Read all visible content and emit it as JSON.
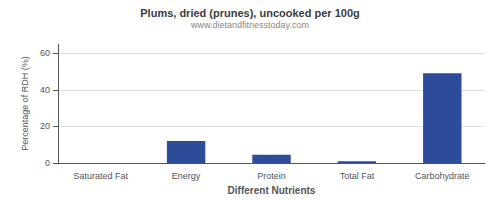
{
  "chart_data": {
    "type": "bar",
    "title": "Plums, dried (prunes), uncooked per 100g",
    "subtitle": "www.dietandfitnesstoday.com",
    "categories": [
      "Saturated Fat",
      "Energy",
      "Protein",
      "Total Fat",
      "Carbohydrate"
    ],
    "values": [
      0.1,
      12.0,
      4.5,
      1.0,
      49.0
    ],
    "color": "#2e4b9a",
    "xlabel": "Different Nutrients",
    "ylabel": "Percentage of RDH (%)",
    "ylim": [
      0,
      65
    ],
    "yticks": [
      0,
      20,
      40,
      60
    ],
    "grid": true
  }
}
